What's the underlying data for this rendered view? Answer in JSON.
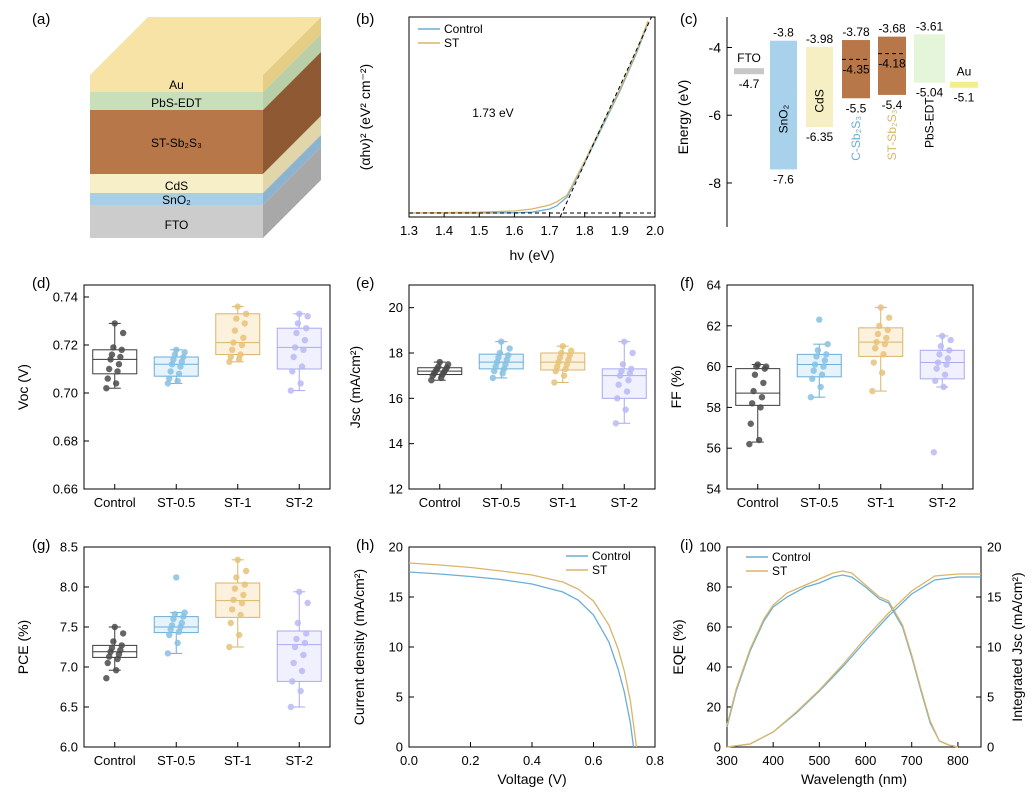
{
  "figure": {
    "panel_labels": [
      "(a)",
      "(b)",
      "(c)",
      "(d)",
      "(e)",
      "(f)",
      "(g)",
      "(h)",
      "(i)"
    ]
  },
  "colors": {
    "control": "#6baed6",
    "st": "#d9b56a",
    "box": [
      "#3a3a3a",
      "#6baed6",
      "#d9b56a",
      "#a9a9f0"
    ],
    "box_fill": [
      "#ffffff",
      "#e6f3fb",
      "#fbf1dd",
      "#f1f0ff"
    ],
    "box_dot": [
      "#4a4a4a",
      "#86c0e3",
      "#e6c27a",
      "#b8b8f5"
    ]
  },
  "chart_data": [
    {
      "panel": "(a)",
      "type": "diagram",
      "layers": [
        {
          "label": "Au",
          "color": "#f8e3a6"
        },
        {
          "label": "PbS-EDT",
          "color": "#c9dfb9"
        },
        {
          "label": "ST-Sb₂S₃",
          "color": "#b87748"
        },
        {
          "label": "CdS",
          "color": "#f7efc8"
        },
        {
          "label": "SnO₂",
          "color": "#a9cfe8"
        },
        {
          "label": "FTO",
          "color": "#cccccc"
        }
      ]
    },
    {
      "panel": "(b)",
      "type": "line",
      "xlabel": "hν (eV)",
      "ylabel": "(αhν)² (eV² cm⁻²)",
      "xlim": [
        1.3,
        2.0
      ],
      "xticks": [
        1.3,
        1.4,
        1.5,
        1.6,
        1.7,
        1.8,
        1.9,
        2.0
      ],
      "annotation": "1.73 eV",
      "series": [
        {
          "name": "Control",
          "x": [
            1.3,
            1.5,
            1.6,
            1.65,
            1.7,
            1.72,
            1.75,
            1.8,
            1.85,
            1.9,
            1.95,
            1.98
          ],
          "y": [
            0.02,
            0.02,
            0.021,
            0.024,
            0.04,
            0.055,
            0.1,
            0.27,
            0.45,
            0.63,
            0.83,
            0.97
          ]
        },
        {
          "name": "ST",
          "x": [
            1.3,
            1.5,
            1.6,
            1.65,
            1.7,
            1.72,
            1.75,
            1.8,
            1.85,
            1.9,
            1.95,
            1.98
          ],
          "y": [
            0.02,
            0.024,
            0.03,
            0.04,
            0.06,
            0.075,
            0.11,
            0.28,
            0.46,
            0.64,
            0.84,
            0.98
          ]
        }
      ]
    },
    {
      "panel": "(c)",
      "type": "bar",
      "ylabel": "Energy (eV)",
      "ylim": [
        -9.3,
        -3.1
      ],
      "yticks": [
        -4,
        -6,
        -8
      ],
      "materials": [
        {
          "name": "FTO",
          "top": -4.7,
          "bottom": -4.7,
          "top_label": "",
          "bottom_label": "-4.7",
          "color": "#c7c7c7"
        },
        {
          "name": "SnO₂",
          "top": -3.8,
          "bottom": -7.6,
          "top_label": "-3.8",
          "bottom_label": "-7.6",
          "color": "#a8d1ec"
        },
        {
          "name": "CdS",
          "top": -3.98,
          "bottom": -6.35,
          "top_label": "-3.98",
          "bottom_label": "-6.35",
          "color": "#f7efc4"
        },
        {
          "name": "C-Sb₂S₃",
          "top": -3.78,
          "bottom": -5.5,
          "fermi": -4.35,
          "top_label": "-3.78",
          "bottom_label": "-5.5",
          "fermi_label": "-4.35",
          "color": "#b87748"
        },
        {
          "name": "ST-Sb₂S₃",
          "top": -3.68,
          "bottom": -5.4,
          "fermi": -4.18,
          "top_label": "-3.68",
          "bottom_label": "-5.4",
          "fermi_label": "-4.18",
          "color": "#b87748"
        },
        {
          "name": "PbS-EDT",
          "top": -3.61,
          "bottom": -5.04,
          "top_label": "-3.61",
          "bottom_label": "-5.04",
          "color": "#e5f5da"
        },
        {
          "name": "Au",
          "top": -5.1,
          "bottom": -5.1,
          "top_label": "",
          "bottom_label": "-5.1",
          "color": "#f5ee8c"
        }
      ]
    },
    {
      "panel": "(d)",
      "type": "box",
      "ylabel": "Voc (V)",
      "ylim": [
        0.66,
        0.745
      ],
      "yticks": [
        0.66,
        0.68,
        0.7,
        0.72,
        0.74
      ],
      "categories": [
        "Control",
        "ST-0.5",
        "ST-1",
        "ST-2"
      ],
      "boxes": [
        {
          "min": 0.702,
          "q1": 0.708,
          "med": 0.714,
          "q3": 0.718,
          "max": 0.729
        },
        {
          "min": 0.704,
          "q1": 0.707,
          "med": 0.712,
          "q3": 0.715,
          "max": 0.718
        },
        {
          "min": 0.713,
          "q1": 0.716,
          "med": 0.721,
          "q3": 0.733,
          "max": 0.736
        },
        {
          "min": 0.701,
          "q1": 0.71,
          "med": 0.719,
          "q3": 0.727,
          "max": 0.733
        }
      ],
      "points": [
        [
          0.702,
          0.704,
          0.706,
          0.709,
          0.71,
          0.712,
          0.714,
          0.715,
          0.716,
          0.718,
          0.719,
          0.725,
          0.729
        ],
        [
          0.704,
          0.705,
          0.706,
          0.708,
          0.709,
          0.711,
          0.712,
          0.713,
          0.714,
          0.715,
          0.716,
          0.717,
          0.718
        ],
        [
          0.713,
          0.714,
          0.715,
          0.716,
          0.718,
          0.72,
          0.721,
          0.723,
          0.726,
          0.729,
          0.731,
          0.733,
          0.736
        ],
        [
          0.701,
          0.704,
          0.709,
          0.711,
          0.715,
          0.718,
          0.719,
          0.722,
          0.725,
          0.727,
          0.729,
          0.732,
          0.733
        ]
      ]
    },
    {
      "panel": "(e)",
      "type": "box",
      "ylabel": "Jsc (mA/cm²)",
      "ylim": [
        12,
        21
      ],
      "yticks": [
        12,
        14,
        16,
        18,
        20
      ],
      "categories": [
        "Control",
        "ST-0.5",
        "ST-1",
        "ST-2"
      ],
      "boxes": [
        {
          "min": 16.8,
          "q1": 17.05,
          "med": 17.2,
          "q3": 17.35,
          "max": 17.6
        },
        {
          "min": 16.9,
          "q1": 17.3,
          "med": 17.6,
          "q3": 17.95,
          "max": 18.5
        },
        {
          "min": 16.7,
          "q1": 17.25,
          "med": 17.6,
          "q3": 18.0,
          "max": 18.3
        },
        {
          "min": 14.9,
          "q1": 16.0,
          "med": 17.0,
          "q3": 17.3,
          "max": 18.5
        }
      ],
      "points": [
        [
          16.8,
          16.9,
          17.0,
          17.05,
          17.1,
          17.15,
          17.2,
          17.25,
          17.3,
          17.35,
          17.4,
          17.5,
          17.6
        ],
        [
          16.9,
          17.1,
          17.2,
          17.3,
          17.4,
          17.5,
          17.6,
          17.7,
          17.8,
          17.9,
          18.0,
          18.2,
          18.5
        ],
        [
          16.7,
          17.0,
          17.2,
          17.3,
          17.4,
          17.5,
          17.6,
          17.7,
          17.8,
          17.9,
          18.0,
          18.1,
          18.3
        ],
        [
          14.9,
          15.5,
          16.0,
          16.3,
          16.6,
          16.8,
          17.0,
          17.1,
          17.2,
          17.3,
          17.5,
          18.0,
          18.5
        ]
      ]
    },
    {
      "panel": "(f)",
      "type": "box",
      "ylabel": "FF (%)",
      "ylim": [
        54,
        64
      ],
      "yticks": [
        54,
        56,
        58,
        60,
        62,
        64
      ],
      "categories": [
        "Control",
        "ST-0.5",
        "ST-1",
        "ST-2"
      ],
      "boxes": [
        {
          "min": 56.3,
          "q1": 58.1,
          "med": 58.7,
          "q3": 59.9,
          "max": 60.1
        },
        {
          "min": 58.5,
          "q1": 59.5,
          "med": 60.1,
          "q3": 60.6,
          "max": 61.1
        },
        {
          "min": 58.8,
          "q1": 60.5,
          "med": 61.2,
          "q3": 61.9,
          "max": 62.9
        },
        {
          "min": 59.0,
          "q1": 59.4,
          "med": 60.2,
          "q3": 60.8,
          "max": 61.5
        }
      ],
      "points": [
        [
          56.2,
          56.4,
          57.2,
          58.0,
          58.2,
          58.5,
          58.8,
          59.2,
          59.6,
          59.9,
          60.0,
          60.0,
          60.1
        ],
        [
          58.5,
          59.0,
          59.4,
          59.6,
          59.8,
          60.0,
          60.1,
          60.3,
          60.5,
          60.6,
          60.8,
          61.1,
          62.3
        ],
        [
          58.8,
          59.7,
          60.2,
          60.6,
          60.9,
          61.1,
          61.2,
          61.4,
          61.6,
          61.8,
          62.0,
          62.4,
          62.9
        ],
        [
          55.8,
          59.0,
          59.3,
          59.6,
          59.9,
          60.1,
          60.2,
          60.4,
          60.6,
          60.8,
          61.0,
          61.3,
          61.5
        ]
      ]
    },
    {
      "panel": "(g)",
      "type": "box",
      "ylabel": "PCE (%)",
      "ylim": [
        6.0,
        8.5
      ],
      "yticks": [
        6.0,
        6.5,
        7.0,
        7.5,
        8.0,
        8.5
      ],
      "categories": [
        "Control",
        "ST-0.5",
        "ST-1",
        "ST-2"
      ],
      "boxes": [
        {
          "min": 6.96,
          "q1": 7.12,
          "med": 7.19,
          "q3": 7.27,
          "max": 7.5
        },
        {
          "min": 7.17,
          "q1": 7.43,
          "med": 7.5,
          "q3": 7.63,
          "max": 7.68
        },
        {
          "min": 7.25,
          "q1": 7.62,
          "med": 7.83,
          "q3": 8.05,
          "max": 8.34
        },
        {
          "min": 6.5,
          "q1": 6.82,
          "med": 7.28,
          "q3": 7.45,
          "max": 7.94
        }
      ],
      "points": [
        [
          6.86,
          6.96,
          7.05,
          7.1,
          7.13,
          7.16,
          7.19,
          7.21,
          7.24,
          7.27,
          7.32,
          7.42,
          7.5
        ],
        [
          7.17,
          7.3,
          7.4,
          7.44,
          7.47,
          7.5,
          7.52,
          7.55,
          7.6,
          7.63,
          7.66,
          7.68,
          8.12
        ],
        [
          7.25,
          7.4,
          7.55,
          7.65,
          7.72,
          7.8,
          7.84,
          7.9,
          7.98,
          8.03,
          8.12,
          8.2,
          8.34
        ],
        [
          6.5,
          6.7,
          6.82,
          6.95,
          7.05,
          7.15,
          7.25,
          7.3,
          7.35,
          7.42,
          7.55,
          7.8,
          7.94
        ]
      ]
    },
    {
      "panel": "(h)",
      "type": "line",
      "xlabel": "Voltage (V)",
      "ylabel": "Current density (mA/cm²)",
      "xlim": [
        0,
        0.8
      ],
      "ylim": [
        0,
        20
      ],
      "xticks": [
        0.0,
        0.2,
        0.4,
        0.6,
        0.8
      ],
      "yticks": [
        0,
        5,
        10,
        15,
        20
      ],
      "series": [
        {
          "name": "Control",
          "x": [
            0,
            0.1,
            0.2,
            0.3,
            0.4,
            0.5,
            0.55,
            0.6,
            0.65,
            0.68,
            0.7,
            0.72,
            0.73
          ],
          "y": [
            17.5,
            17.3,
            17.05,
            16.75,
            16.3,
            15.5,
            14.7,
            13.2,
            10.5,
            7.8,
            5.5,
            2.4,
            0
          ]
        },
        {
          "name": "ST",
          "x": [
            0,
            0.1,
            0.2,
            0.3,
            0.4,
            0.5,
            0.55,
            0.6,
            0.65,
            0.68,
            0.7,
            0.72,
            0.74
          ],
          "y": [
            18.4,
            18.2,
            17.95,
            17.6,
            17.2,
            16.5,
            15.8,
            14.6,
            12.2,
            9.8,
            7.6,
            4.6,
            0
          ]
        }
      ]
    },
    {
      "panel": "(i)",
      "type": "line",
      "xlabel": "Wavelength (nm)",
      "ylabel": "EQE (%)",
      "y2label": "Integrated Jsc (mA/cm²)",
      "xlim": [
        300,
        850
      ],
      "ylim": [
        0,
        100
      ],
      "y2lim": [
        0,
        20
      ],
      "xticks": [
        300,
        400,
        500,
        600,
        700,
        800
      ],
      "yticks": [
        0,
        20,
        40,
        60,
        80,
        100
      ],
      "y2ticks": [
        0,
        5,
        10,
        15,
        20
      ],
      "series": [
        {
          "name": "Control",
          "axis": "left",
          "x": [
            300,
            320,
            350,
            380,
            400,
            430,
            470,
            500,
            530,
            550,
            570,
            600,
            630,
            650,
            680,
            700,
            720,
            740,
            760,
            780,
            800
          ],
          "y": [
            10,
            28,
            48,
            63,
            70,
            75,
            80,
            82,
            85,
            86,
            85,
            80,
            74,
            72,
            60,
            45,
            28,
            12,
            3,
            1,
            0
          ]
        },
        {
          "name": "ST",
          "axis": "left",
          "x": [
            300,
            320,
            350,
            380,
            400,
            430,
            470,
            500,
            530,
            550,
            570,
            600,
            630,
            650,
            680,
            700,
            720,
            740,
            760,
            780,
            800
          ],
          "y": [
            11,
            29,
            49,
            64,
            71,
            77,
            81,
            84,
            87,
            88,
            87,
            81,
            75,
            73,
            61,
            46,
            29,
            13,
            3,
            1,
            0
          ]
        },
        {
          "name": "Control",
          "axis": "right",
          "x": [
            300,
            350,
            400,
            450,
            500,
            550,
            600,
            650,
            700,
            750,
            800,
            850
          ],
          "y": [
            0,
            0.3,
            1.5,
            3.4,
            5.6,
            8.0,
            10.6,
            13.1,
            15.3,
            16.7,
            17.0,
            17.0
          ]
        },
        {
          "name": "ST",
          "axis": "right",
          "x": [
            300,
            350,
            400,
            450,
            500,
            550,
            600,
            650,
            700,
            750,
            800,
            850
          ],
          "y": [
            0,
            0.3,
            1.5,
            3.5,
            5.7,
            8.2,
            10.9,
            13.4,
            15.6,
            17.1,
            17.3,
            17.3
          ]
        }
      ]
    }
  ]
}
